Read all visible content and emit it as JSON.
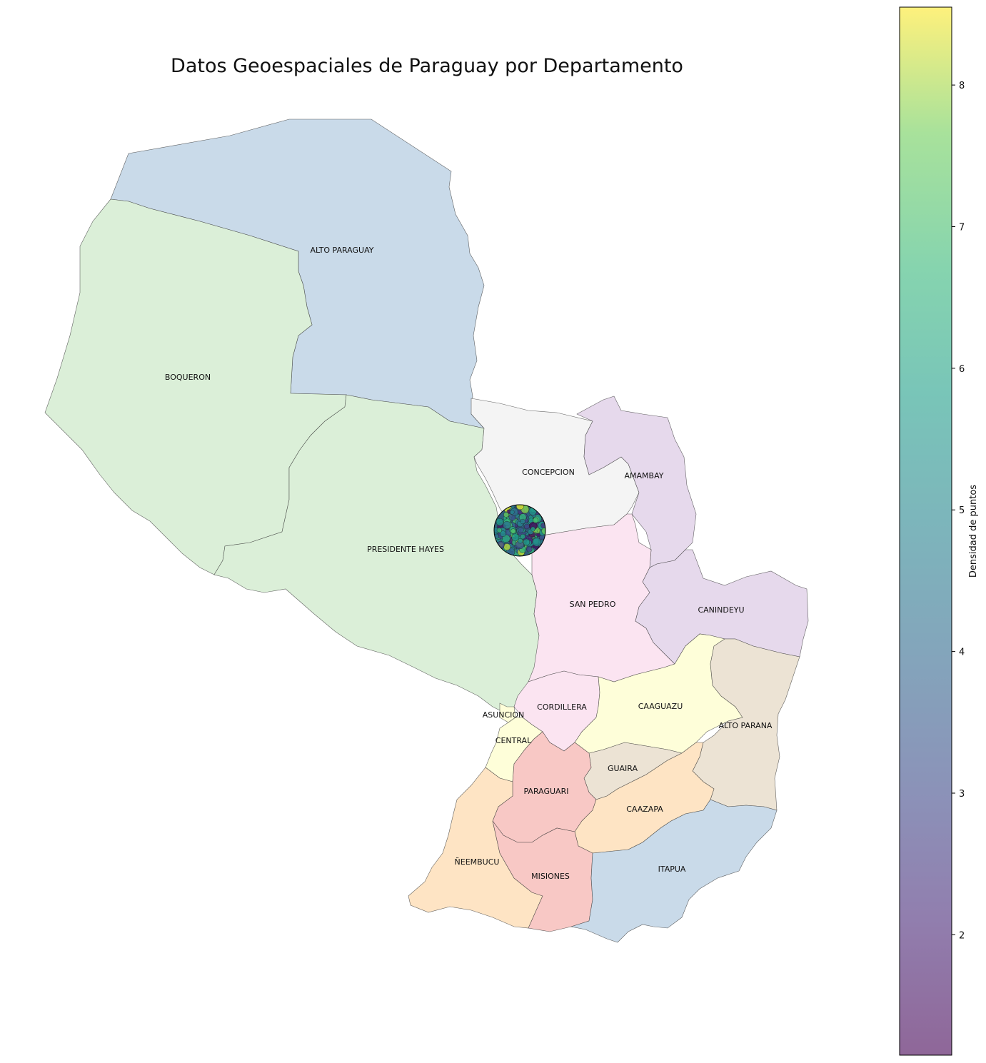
{
  "title": "Datos Geoespaciales de Paraguay por Departamento",
  "colorbar": {
    "label": "Densidad de puntos",
    "range": [
      1.15,
      8.55
    ],
    "ticks": [
      "2",
      "3",
      "4",
      "5",
      "6",
      "7",
      "8"
    ],
    "colormap": "viridis",
    "alpha": 0.6
  },
  "departments": [
    {
      "id": "alto-paraguay",
      "name": "ALTO PARAGUAY",
      "color": "#c9dae9"
    },
    {
      "id": "boqueron",
      "name": "BOQUERON",
      "color": "#dbefd8"
    },
    {
      "id": "presidente-hayes",
      "name": "PRESIDENTE HAYES",
      "color": "#dbefd8"
    },
    {
      "id": "concepcion",
      "name": "CONCEPCION",
      "color": "#f4f4f4"
    },
    {
      "id": "amambay",
      "name": "AMAMBAY",
      "color": "#e6d9ec"
    },
    {
      "id": "san-pedro",
      "name": "SAN PEDRO",
      "color": "#fbe4f1"
    },
    {
      "id": "canindeyu",
      "name": "CANINDEYU",
      "color": "#e6d9ec"
    },
    {
      "id": "cordillera",
      "name": "CORDILLERA",
      "color": "#fbe4f1"
    },
    {
      "id": "caaguazu",
      "name": "CAAGUAZU",
      "color": "#fefed9"
    },
    {
      "id": "asuncion",
      "name": "ASUNCION",
      "color": "#fefed9"
    },
    {
      "id": "central",
      "name": "CENTRAL",
      "color": "#fefed9"
    },
    {
      "id": "alto-parana",
      "name": "ALTO PARANA",
      "color": "#ece3d4"
    },
    {
      "id": "guaira",
      "name": "GUAIRA",
      "color": "#ece3d4"
    },
    {
      "id": "paraguari",
      "name": "PARAGUARI",
      "color": "#f8c8c5"
    },
    {
      "id": "caazapa",
      "name": "CAAZAPA",
      "color": "#fee4c4"
    },
    {
      "id": "neembucu",
      "name": "ÑEEMBUCU",
      "color": "#fee4c4"
    },
    {
      "id": "misiones",
      "name": "MISIONES",
      "color": "#f8c8c5"
    },
    {
      "id": "itapua",
      "name": "ITAPUA",
      "color": "#c9dae9"
    }
  ],
  "points": {
    "description_center": "ASUNCION",
    "values": [
      1.3,
      1.6,
      2.0,
      2.2,
      2.5,
      2.8,
      3.0,
      3.3,
      3.5,
      3.8,
      4.0,
      4.2,
      4.4,
      4.6,
      4.8,
      5.0,
      5.1,
      5.3,
      5.5,
      5.6,
      5.8,
      6.0,
      6.1,
      6.3,
      6.5,
      6.7,
      6.9,
      7.2,
      7.5,
      7.8,
      8.1,
      8.4,
      3.1,
      4.5,
      5.2,
      5.9,
      6.6,
      2.7,
      4.9,
      5.4
    ]
  }
}
